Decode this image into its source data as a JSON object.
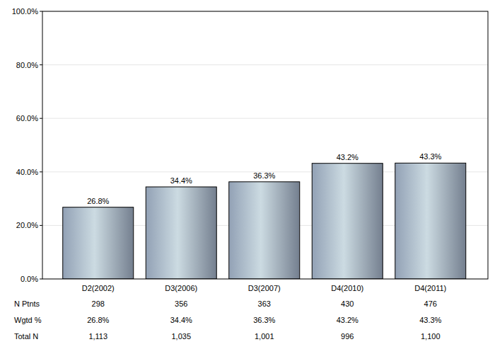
{
  "chart_data": {
    "type": "bar",
    "categories": [
      "D2(2002)",
      "D3(2006)",
      "D3(2007)",
      "D4(2010)",
      "D4(2011)"
    ],
    "values": [
      26.8,
      34.4,
      36.3,
      43.2,
      43.3
    ],
    "value_labels": [
      "26.8%",
      "34.4%",
      "36.3%",
      "43.2%",
      "43.3%"
    ],
    "data_labels": true,
    "color": "#9aa9bf",
    "ylim": [
      0,
      100
    ],
    "yticks": [
      {
        "value": 0,
        "label": "0.0%"
      },
      {
        "value": 20,
        "label": "20.0%"
      },
      {
        "value": 40,
        "label": "40.0%"
      },
      {
        "value": 60,
        "label": "60.0%"
      },
      {
        "value": 80,
        "label": "80.0%"
      },
      {
        "value": 100,
        "label": "100.0%"
      }
    ],
    "grid": true
  },
  "table": {
    "rows": [
      {
        "label": "N Ptnts",
        "values": [
          "298",
          "356",
          "363",
          "430",
          "476"
        ]
      },
      {
        "label": "Wgtd %",
        "values": [
          "26.8%",
          "34.4%",
          "36.3%",
          "43.2%",
          "43.3%"
        ]
      },
      {
        "label": "Total N",
        "values": [
          "1,113",
          "1,035",
          "1,001",
          "996",
          "1,100"
        ]
      }
    ]
  }
}
